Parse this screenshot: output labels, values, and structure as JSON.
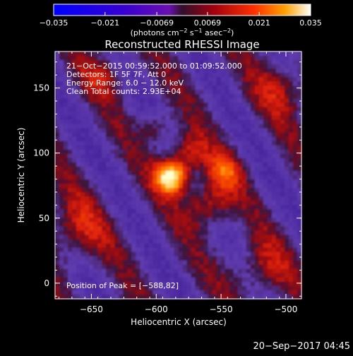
{
  "chart_data": {
    "type": "heatmap",
    "title": "Reconstructed RHESSI Image",
    "xlabel": "Heliocentric X (arcsec)",
    "ylabel": "Heliocentric Y (arcsec)",
    "xlim": [
      -678,
      -488
    ],
    "ylim": [
      -12,
      178
    ],
    "x_ticks": [
      -650,
      -600,
      -550,
      -500
    ],
    "y_ticks": [
      0,
      50,
      100,
      150
    ],
    "x_tick_labels": [
      "−650",
      "−600",
      "−550",
      "−500"
    ],
    "y_tick_labels": [
      "0",
      "50",
      "100",
      "150"
    ],
    "colorbar": {
      "range": [
        -0.035,
        0.035
      ],
      "ticks": [
        -0.035,
        -0.021,
        -0.0069,
        0.0069,
        0.021,
        0.035
      ],
      "tick_labels": [
        "−0.035",
        "−0.021",
        "−0.0069",
        "0.0069",
        "0.021",
        "0.035"
      ],
      "unit_prefix": "(photons cm",
      "unit_exp1": "−2",
      "unit_mid1": " s",
      "unit_exp2": "−1",
      "unit_mid2": " asec",
      "unit_exp3": "−2",
      "unit_suffix": ")"
    },
    "annotations": [
      "21−Oct−2015 00:59:52.000 to 01:09:52.000",
      "Detectors: 1F 5F 7F, Att 0",
      "Energy Range: 6.0 − 12.0 keV",
      "Clean     Total counts: 2.93E+04"
    ],
    "peak_label": "Position of Peak = [−588,82]",
    "peak": [
      -588,
      82
    ],
    "colors": {
      "background": "#000000",
      "negative": "#5a2ca0",
      "positive": "#ff2a00",
      "peak": "#ffffc8"
    }
  },
  "footer": {
    "datetime": "20−Sep−2017 04:45"
  }
}
